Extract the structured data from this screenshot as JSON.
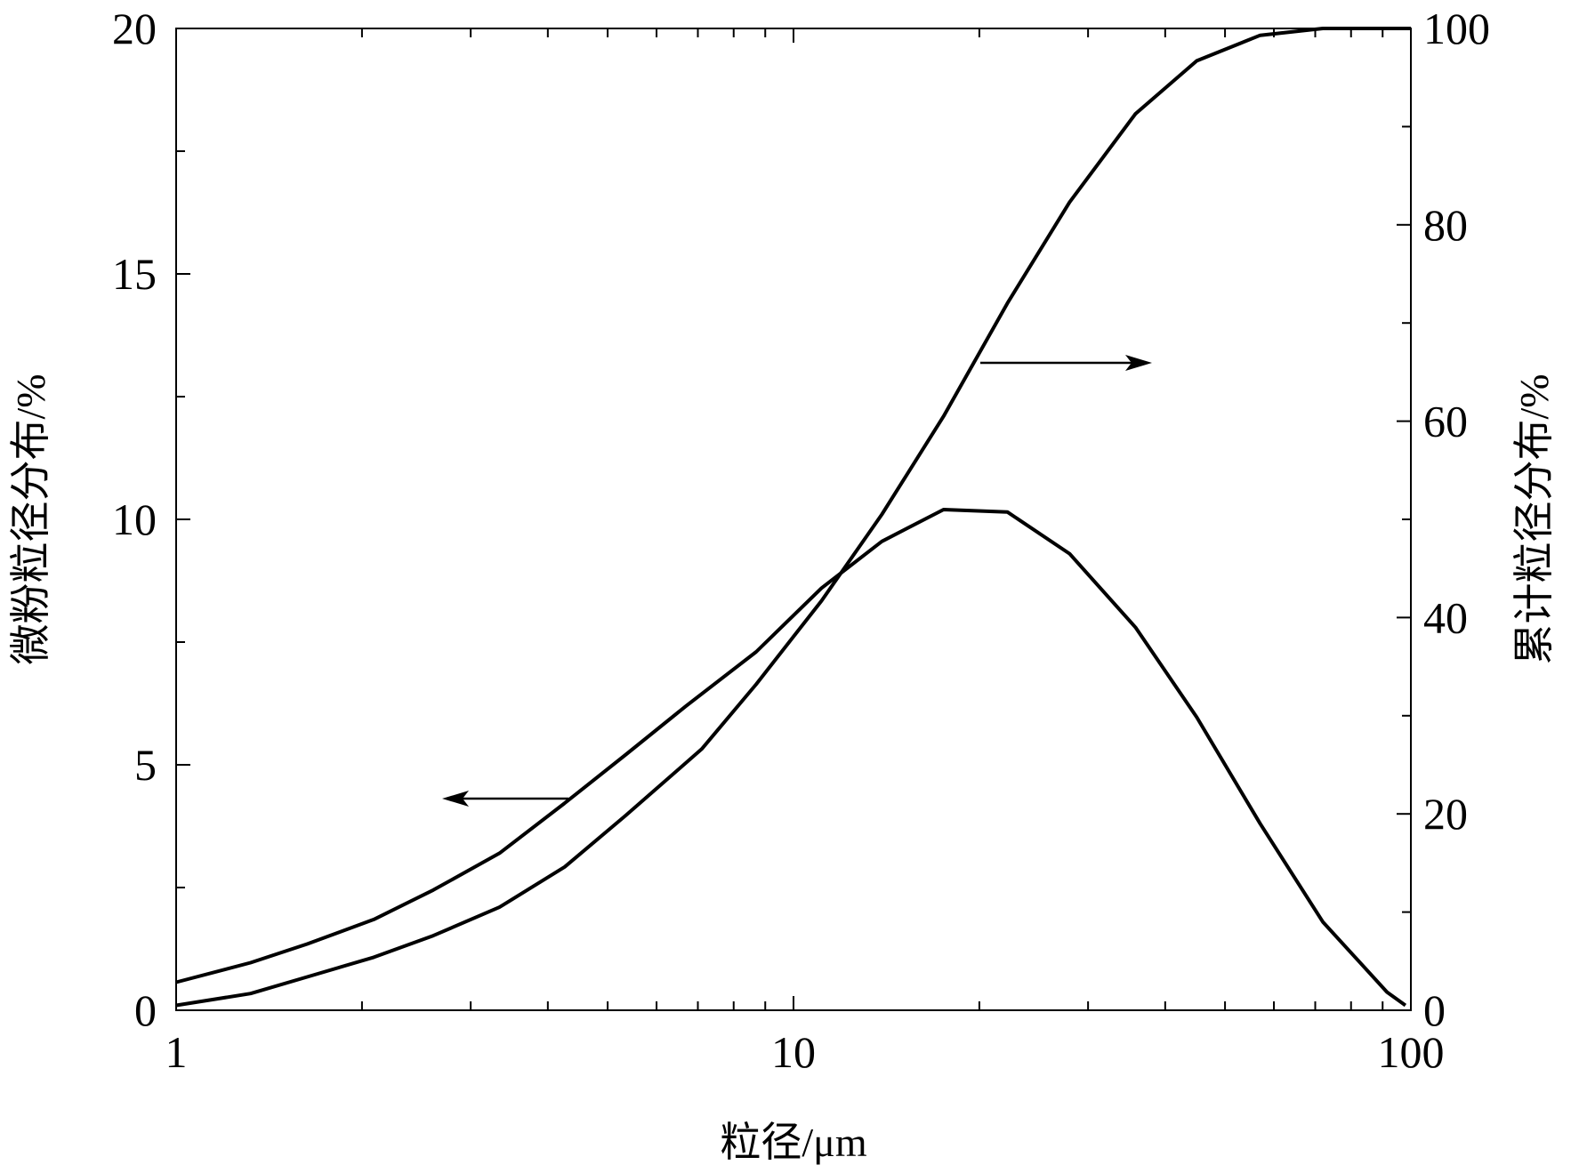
{
  "chart_data": {
    "type": "line",
    "xlabel": "粒径/μm",
    "ylabel_left": "微粉粒径分布/%",
    "ylabel_right": "累计粒径分布/%",
    "x_scale": "log",
    "xlim": [
      1,
      100
    ],
    "ylim_left": [
      0,
      20
    ],
    "ylim_right": [
      0,
      100
    ],
    "x_ticks": [
      "1",
      "10",
      "100"
    ],
    "y_left_ticks": [
      "0",
      "5",
      "10",
      "15",
      "20"
    ],
    "y_right_ticks": [
      "0",
      "20",
      "40",
      "60",
      "80",
      "100"
    ],
    "grid": false,
    "line_color": "#000000",
    "series": [
      {
        "axis": "left",
        "x": [
          1.0,
          1.32,
          1.63,
          2.09,
          2.61,
          3.34,
          4.26,
          5.34,
          6.7,
          8.7,
          11.1,
          13.9,
          17.5,
          22.2,
          28,
          35.8,
          45,
          57,
          72,
          91.5,
          98
        ],
        "y": [
          0.57,
          0.97,
          1.35,
          1.85,
          2.45,
          3.2,
          4.22,
          5.2,
          6.2,
          7.3,
          8.6,
          9.55,
          10.2,
          10.15,
          9.3,
          7.8,
          5.97,
          3.8,
          1.8,
          0.37,
          0.1
        ]
      },
      {
        "axis": "right",
        "x": [
          1.0,
          1.32,
          1.63,
          2.09,
          2.61,
          3.34,
          4.26,
          5.34,
          7.1,
          8.7,
          11.1,
          13.9,
          17.5,
          22.2,
          28,
          35.8,
          45,
          57,
          72,
          100
        ],
        "y": [
          0.5,
          1.7,
          3.4,
          5.4,
          7.6,
          10.5,
          14.6,
          19.8,
          26.6,
          33.2,
          41.7,
          50.5,
          60.5,
          72,
          82.3,
          91.3,
          96.7,
          99.3,
          100,
          100
        ]
      }
    ],
    "annotations": [
      {
        "type": "arrow",
        "direction": "left",
        "points_to": "left axis"
      },
      {
        "type": "arrow",
        "direction": "right",
        "points_to": "right axis"
      }
    ]
  }
}
